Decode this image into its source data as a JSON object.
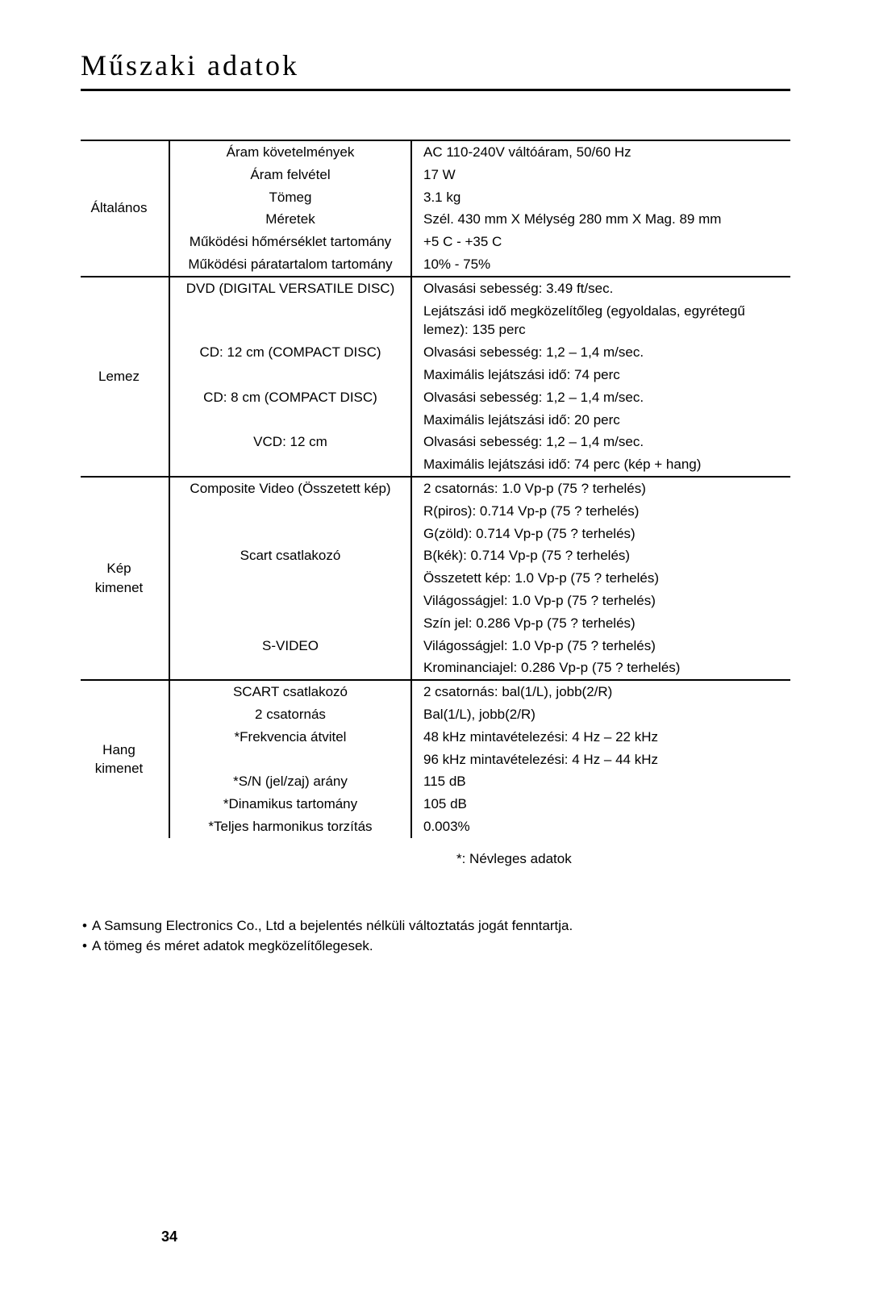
{
  "title": "Műszaki adatok",
  "page_number": "34",
  "footnote": "*: Névleges adatok",
  "notes": [
    "A Samsung Electronics Co., Ltd a bejelentés nélküli változtatás jogát fenntartja.",
    "A tömeg és méret adatok megközelítőlegesek."
  ],
  "sections": [
    {
      "category": "Általános",
      "rows": [
        {
          "label": "Áram követelmények",
          "value": "AC 110-240V váltóáram, 50/60 Hz"
        },
        {
          "label": "Áram felvétel",
          "value": "17 W"
        },
        {
          "label": "Tömeg",
          "value": "3.1 kg"
        },
        {
          "label": "Méretek",
          "value": "Szél. 430 mm X Mélység 280 mm X Mag. 89 mm"
        },
        {
          "label": "Működési hőmérséklet tartomány",
          "value": "+5 C - +35 C"
        },
        {
          "label": "Működési páratartalom tartomány",
          "value": "10% - 75%"
        }
      ]
    },
    {
      "category": "Lemez",
      "rows": [
        {
          "label": "DVD (DIGITAL VERSATILE DISC)",
          "value": "Olvasási sebesség: 3.49 ft/sec."
        },
        {
          "label": "",
          "value": "Lejátszási idő megközelítőleg (egyoldalas, egyrétegű lemez): 135 perc"
        },
        {
          "label": "CD: 12 cm (COMPACT DISC)",
          "value": "Olvasási sebesség: 1,2 – 1,4 m/sec."
        },
        {
          "label": "",
          "value": "Maximális lejátszási idő: 74 perc"
        },
        {
          "label": "CD: 8 cm (COMPACT DISC)",
          "value": "Olvasási sebesség: 1,2 – 1,4 m/sec."
        },
        {
          "label": "",
          "value": "Maximális lejátszási idő: 20 perc"
        },
        {
          "label": "VCD: 12 cm",
          "value": "Olvasási sebesség: 1,2 – 1,4 m/sec."
        },
        {
          "label": "",
          "value": "Maximális lejátszási idő: 74 perc (kép + hang)"
        }
      ]
    },
    {
      "category": "Kép kimenet",
      "rows": [
        {
          "label": "Composite Video (Összetett kép)",
          "value": "2 csatornás: 1.0 Vp-p (75 ? terhelés)"
        },
        {
          "label": "",
          "value": "R(piros): 0.714 Vp-p (75 ? terhelés)"
        },
        {
          "label": "",
          "value": "G(zöld): 0.714 Vp-p (75 ? terhelés)"
        },
        {
          "label": "Scart csatlakozó",
          "value": "B(kék): 0.714 Vp-p (75 ? terhelés)"
        },
        {
          "label": "",
          "value": "Összetett kép: 1.0 Vp-p (75 ? terhelés)"
        },
        {
          "label": "",
          "value": "Világosságjel: 1.0 Vp-p (75 ? terhelés)"
        },
        {
          "label": "",
          "value": "Szín jel: 0.286 Vp-p (75 ? terhelés)"
        },
        {
          "label": "S-VIDEO",
          "value": "Világosságjel: 1.0 Vp-p (75 ? terhelés)"
        },
        {
          "label": "",
          "value": "Krominanciajel: 0.286 Vp-p (75 ? terhelés)"
        }
      ]
    },
    {
      "category": "Hang kimenet",
      "rows": [
        {
          "label": "SCART csatlakozó",
          "value": "2 csatornás: bal(1/L), jobb(2/R)"
        },
        {
          "label": "2 csatornás",
          "value": "Bal(1/L), jobb(2/R)"
        },
        {
          "label": "*Frekvencia átvitel",
          "value": "48 kHz mintavételezési: 4 Hz – 22 kHz"
        },
        {
          "label": "",
          "value": "96 kHz mintavételezési: 4 Hz – 44 kHz"
        },
        {
          "label": "*S/N (jel/zaj) arány",
          "value": "115 dB"
        },
        {
          "label": "*Dinamikus tartomány",
          "value": "105 dB"
        },
        {
          "label": "*Teljes harmonikus torzítás",
          "value": "0.003%"
        }
      ]
    }
  ],
  "style": {
    "background_color": "#ffffff",
    "text_color": "#000000",
    "title_font": "serif",
    "title_fontsize": 36,
    "body_fontsize": 17,
    "border_width": 2
  }
}
